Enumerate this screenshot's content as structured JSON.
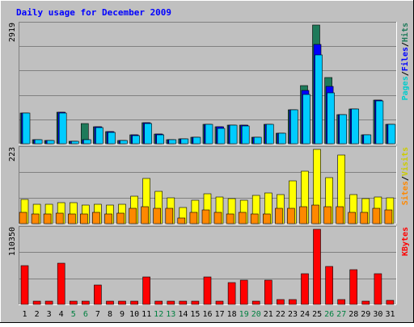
{
  "chart_data": [
    {
      "type": "bar",
      "title": "Daily usage for December 2009",
      "ylabel_max": "2919",
      "categories": [
        "1",
        "2",
        "3",
        "4",
        "5",
        "6",
        "7",
        "8",
        "9",
        "10",
        "11",
        "12",
        "13",
        "14",
        "15",
        "16",
        "17",
        "18",
        "19",
        "20",
        "21",
        "22",
        "23",
        "24",
        "25",
        "26",
        "27",
        "28",
        "29",
        "30",
        "31"
      ],
      "weekend_days": [
        "5",
        "6",
        "12",
        "13",
        "19",
        "20",
        "26",
        "27"
      ],
      "ylim": [
        0,
        2919
      ],
      "legend": [
        "Pages",
        "/",
        "Files",
        "/",
        "Hits"
      ],
      "series": [
        {
          "name": "Hits",
          "color": "#1e7a5a",
          "values": [
            755,
            91,
            77,
            783,
            68,
            503,
            413,
            304,
            77,
            215,
            519,
            233,
            98,
            110,
            166,
            468,
            418,
            460,
            455,
            154,
            467,
            263,
            837,
            1438,
            2919,
            1636,
            722,
            847,
            226,
            1078,
            478
          ]
        },
        {
          "name": "Files",
          "color": "#0000ff",
          "values": [
            755,
            91,
            77,
            783,
            68,
            91,
            413,
            304,
            77,
            215,
            519,
            233,
            98,
            110,
            166,
            468,
            418,
            460,
            455,
            154,
            467,
            263,
            837,
            1305,
            2440,
            1400,
            722,
            847,
            226,
            1078,
            478
          ]
        },
        {
          "name": "Pages",
          "color": "#00ccff",
          "values": [
            755,
            91,
            77,
            755,
            68,
            91,
            389,
            280,
            77,
            195,
            500,
            225,
            98,
            110,
            166,
            468,
            370,
            460,
            440,
            154,
            467,
            263,
            837,
            1210,
            2190,
            1245,
            722,
            847,
            210,
            1060,
            478
          ]
        }
      ]
    },
    {
      "type": "bar",
      "ylabel_max": "223",
      "categories": [
        "1",
        "2",
        "3",
        "4",
        "5",
        "6",
        "7",
        "8",
        "9",
        "10",
        "11",
        "12",
        "13",
        "14",
        "15",
        "16",
        "17",
        "18",
        "19",
        "20",
        "21",
        "22",
        "23",
        "24",
        "25",
        "26",
        "27",
        "28",
        "29",
        "30",
        "31"
      ],
      "ylim": [
        0,
        223
      ],
      "legend": [
        "Sites",
        "/",
        "Visits"
      ],
      "series": [
        {
          "name": "Visits",
          "color": "#ffff00",
          "values": [
            72,
            58,
            58,
            62,
            62,
            55,
            57,
            55,
            57,
            83,
            135,
            98,
            77,
            48,
            70,
            89,
            80,
            75,
            70,
            85,
            93,
            87,
            128,
            157,
            223,
            137,
            207,
            87,
            75,
            80,
            78
          ]
        },
        {
          "name": "Sites",
          "color": "#ff8800",
          "values": [
            35,
            28,
            28,
            32,
            28,
            28,
            35,
            28,
            32,
            45,
            50,
            45,
            45,
            18,
            35,
            40,
            35,
            30,
            35,
            30,
            30,
            45,
            45,
            50,
            55,
            50,
            50,
            35,
            35,
            45,
            42
          ]
        }
      ]
    },
    {
      "type": "bar",
      "ylabel_max": "110350",
      "categories": [
        "1",
        "2",
        "3",
        "4",
        "5",
        "6",
        "7",
        "8",
        "9",
        "10",
        "11",
        "12",
        "13",
        "14",
        "15",
        "16",
        "17",
        "18",
        "19",
        "20",
        "21",
        "22",
        "23",
        "24",
        "25",
        "26",
        "27",
        "28",
        "29",
        "30",
        "31"
      ],
      "ylim": [
        0,
        110350
      ],
      "legend": [
        "KBytes"
      ],
      "series": [
        {
          "name": "KBytes",
          "color": "#ff0000",
          "values": [
            57000,
            4500,
            4500,
            61000,
            4500,
            4500,
            29000,
            4500,
            4500,
            4500,
            40000,
            4500,
            4500,
            4500,
            4500,
            40000,
            4500,
            32000,
            36000,
            4500,
            36000,
            7500,
            7500,
            45500,
            110350,
            56000,
            7500,
            51000,
            4500,
            45500,
            5500
          ]
        }
      ]
    }
  ]
}
